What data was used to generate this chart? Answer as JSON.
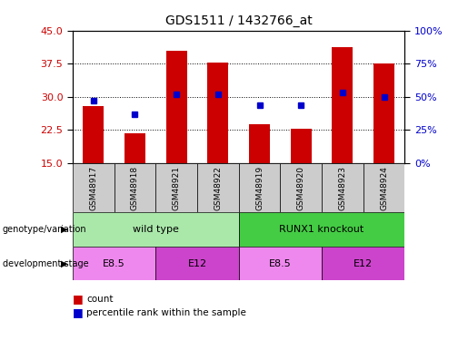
{
  "title": "GDS1511 / 1432766_at",
  "samples": [
    "GSM48917",
    "GSM48918",
    "GSM48921",
    "GSM48922",
    "GSM48919",
    "GSM48920",
    "GSM48923",
    "GSM48924"
  ],
  "counts": [
    28.0,
    21.8,
    40.5,
    37.8,
    23.8,
    22.8,
    41.2,
    37.5
  ],
  "percentiles": [
    47,
    37,
    52,
    52,
    44,
    44,
    53,
    50
  ],
  "ylim_left": [
    15,
    45
  ],
  "ylim_right": [
    0,
    100
  ],
  "yticks_left": [
    15,
    22.5,
    30,
    37.5,
    45
  ],
  "yticks_right": [
    0,
    25,
    50,
    75,
    100
  ],
  "ytick_labels_right": [
    "0%",
    "25%",
    "50%",
    "75%",
    "100%"
  ],
  "bar_color": "#cc0000",
  "dot_color": "#0000cc",
  "bar_width": 0.5,
  "groups": [
    {
      "label": "wild type",
      "start": 0,
      "end": 4,
      "color": "#aae8aa"
    },
    {
      "label": "RUNX1 knockout",
      "start": 4,
      "end": 8,
      "color": "#44cc44"
    }
  ],
  "stages": [
    {
      "label": "E8.5",
      "start": 0,
      "end": 2,
      "color": "#ee88ee"
    },
    {
      "label": "E12",
      "start": 2,
      "end": 4,
      "color": "#cc44cc"
    },
    {
      "label": "E8.5",
      "start": 4,
      "end": 6,
      "color": "#ee88ee"
    },
    {
      "label": "E12",
      "start": 6,
      "end": 8,
      "color": "#cc44cc"
    }
  ],
  "legend_count_color": "#cc0000",
  "legend_pct_color": "#0000cc",
  "legend_count_label": "count",
  "legend_pct_label": "percentile rank within the sample",
  "row_label_geno": "genotype/variation",
  "row_label_stage": "development stage",
  "label_color_left": "#cc0000",
  "label_color_right": "#0000cc",
  "sample_box_color": "#cccccc"
}
